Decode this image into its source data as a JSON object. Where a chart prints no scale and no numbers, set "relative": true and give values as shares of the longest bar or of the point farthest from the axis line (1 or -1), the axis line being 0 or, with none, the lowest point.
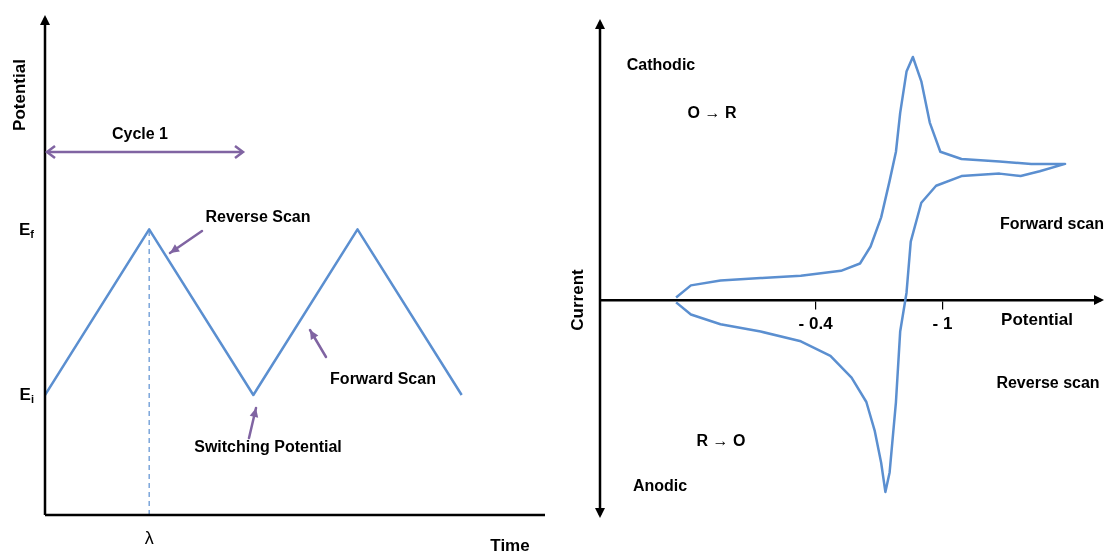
{
  "chart_data": [
    {
      "type": "line",
      "relative": true,
      "xlabel": "Time",
      "ylabel": "Potential",
      "categories": [
        null,
        null,
        null,
        null,
        null
      ],
      "values": [
        0.42,
        1,
        0.42,
        1,
        0.42
      ],
      "color": "#5b8fd0",
      "marker": "none",
      "ref_lines": [
        {
          "axis": "x",
          "label": "λ",
          "color": "#5b8fd0",
          "line_style": "dashed"
        }
      ],
      "annotations": [
        "Cycle 1",
        "Reverse Scan",
        "Forward Scan",
        "Switching Potential",
        "E$_{i}$",
        "E$_{f}$"
      ]
    },
    {
      "type": "line",
      "relative": true,
      "xlabel": "Potential",
      "ylabel": "Current",
      "color": "#5b8fd0",
      "marker": "none",
      "xlim": [
        0.62,
        -1.75
      ],
      "xticks": [
        {
          "value": -0.4,
          "label": "- 0.4"
        },
        {
          "value": -1,
          "label": "- 1"
        }
      ],
      "x": [
        0.26,
        0.19,
        0.05,
        -0.14,
        -0.33,
        -0.52,
        -0.61,
        -0.66,
        -0.71,
        -0.75,
        -0.78,
        -0.8,
        -0.83,
        -0.86,
        -0.9,
        -0.94,
        -0.99,
        -1.09,
        -1.27,
        -1.42,
        -1.58,
        -1.46,
        -1.37,
        -1.27,
        -1.09,
        -0.97,
        -0.9,
        -0.85,
        -0.83,
        -0.8,
        -0.78,
        -0.75,
        -0.73,
        -0.71,
        -0.68,
        -0.64,
        -0.57,
        -0.47,
        -0.33,
        -0.14,
        0.05,
        0.19,
        0.26
      ],
      "values": [
        0.01,
        0.06,
        0.08,
        0.09,
        0.1,
        0.12,
        0.15,
        0.22,
        0.34,
        0.49,
        0.61,
        0.77,
        0.94,
        1,
        0.9,
        0.73,
        0.61,
        0.58,
        0.57,
        0.56,
        0.56,
        0.53,
        0.51,
        0.52,
        0.51,
        0.47,
        0.4,
        0.24,
        0.03,
        -0.13,
        -0.42,
        -0.71,
        -0.79,
        -0.67,
        -0.54,
        -0.42,
        -0.32,
        -0.23,
        -0.17,
        -0.13,
        -0.1,
        -0.06,
        -0.01
      ],
      "annotations": [
        "Cathodic",
        "O → R",
        "Forward scan",
        "Reverse scan",
        "R → O",
        "Anodic"
      ]
    }
  ]
}
